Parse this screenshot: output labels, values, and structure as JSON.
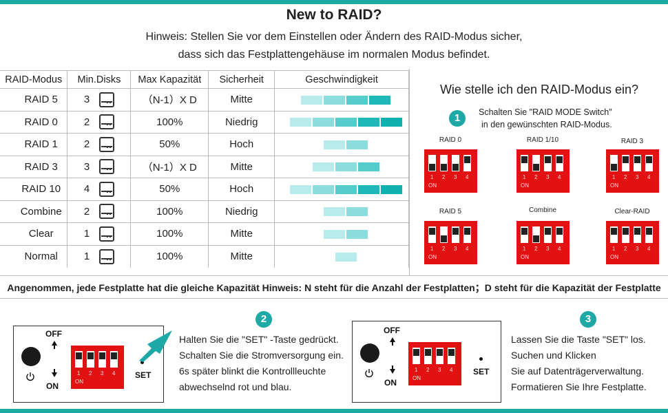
{
  "header": {
    "title": "New to RAID?",
    "hint_line1": "Hinweis: Stellen Sie vor dem Einstellen oder Ändern des RAID-Modus sicher,",
    "hint_line2": "dass sich das Festplattengehäuse im normalen Modus befindet."
  },
  "table": {
    "headers": [
      "RAID-Modus",
      "Min.Disks",
      "Max Kapazität",
      "Sicherheit",
      "Geschwindigkeit"
    ],
    "rows": [
      {
        "mode": "RAID 5",
        "disks": "3",
        "capacity": "（N-1）X D",
        "security": "Mitte",
        "speed": 4
      },
      {
        "mode": "RAID 0",
        "disks": "2",
        "capacity": "100%",
        "security": "Niedrig",
        "speed": 5
      },
      {
        "mode": "RAID 1",
        "disks": "2",
        "capacity": "50%",
        "security": "Hoch",
        "speed": 2
      },
      {
        "mode": "RAID 3",
        "disks": "3",
        "capacity": "（N-1）X D",
        "security": "Mitte",
        "speed": 3
      },
      {
        "mode": "RAID 10",
        "disks": "4",
        "capacity": "50%",
        "security": "Hoch",
        "speed": 5
      },
      {
        "mode": "Combine",
        "disks": "2",
        "capacity": "100%",
        "security": "Niedrig",
        "speed": 2
      },
      {
        "mode": "Clear",
        "disks": "1",
        "capacity": "100%",
        "security": "Mitte",
        "speed": 2
      },
      {
        "mode": "Normal",
        "disks": "1",
        "capacity": "100%",
        "security": "Mitte",
        "speed": 1
      }
    ],
    "speed_colors": [
      "#b8ecec",
      "#8cdddd",
      "#55cccc",
      "#1fb8b8",
      "#0fb0b0"
    ],
    "disk_icon": "hard-drive-icon"
  },
  "setup": {
    "title": "Wie stelle ich den RAID-Modus ein?",
    "step1_badge": "1",
    "step1_line1": "Schalten Sie \"RAID MODE Switch\"",
    "step1_line2": "in den gewünschten RAID-Modus.",
    "switch_numbers": [
      "1",
      "2",
      "3",
      "4"
    ],
    "switch_on": "ON",
    "dip_color": "#e31212",
    "modes": [
      {
        "label": "RAID 0",
        "positions": [
          "down",
          "down",
          "down",
          "up"
        ]
      },
      {
        "label": "RAID  1/10",
        "positions": [
          "up",
          "down",
          "up",
          "up"
        ]
      },
      {
        "label": "RAID 3",
        "positions": [
          "down",
          "up",
          "up",
          "up"
        ]
      },
      {
        "label": "RAID 5",
        "positions": [
          "up",
          "down",
          "up",
          "up"
        ]
      },
      {
        "label": "Combine",
        "positions": [
          "up",
          "down",
          "up",
          "up"
        ]
      },
      {
        "label": "Clear-RAID",
        "positions": [
          "up",
          "up",
          "up",
          "up"
        ]
      }
    ]
  },
  "footnote": "Angenommen, jede Festplatte hat die gleiche Kapazität Hinweis: N steht für die Anzahl der Festplatten；D steht für die Kapazität der Festplatte",
  "step2": {
    "badge": "2",
    "off": "OFF",
    "on": "ON",
    "set": "SET",
    "line1": "Halten Sie die \"SET\" -Taste gedrückt.",
    "line2": "Schalten Sie die Stromversorgung ein.",
    "line3": "6s später blinkt die Kontrollleuchte",
    "line4": "abwechselnd rot und blau."
  },
  "step3": {
    "badge": "3",
    "off": "OFF",
    "on": "ON",
    "set": "SET",
    "line1": "Lassen Sie die Taste \"SET\" los.",
    "line2": "Suchen und Klicken",
    "line3": "Sie auf Datenträgerverwaltung.",
    "line4": "Formatieren Sie Ihre Festplatte."
  },
  "accent_color": "#1fa9a6"
}
